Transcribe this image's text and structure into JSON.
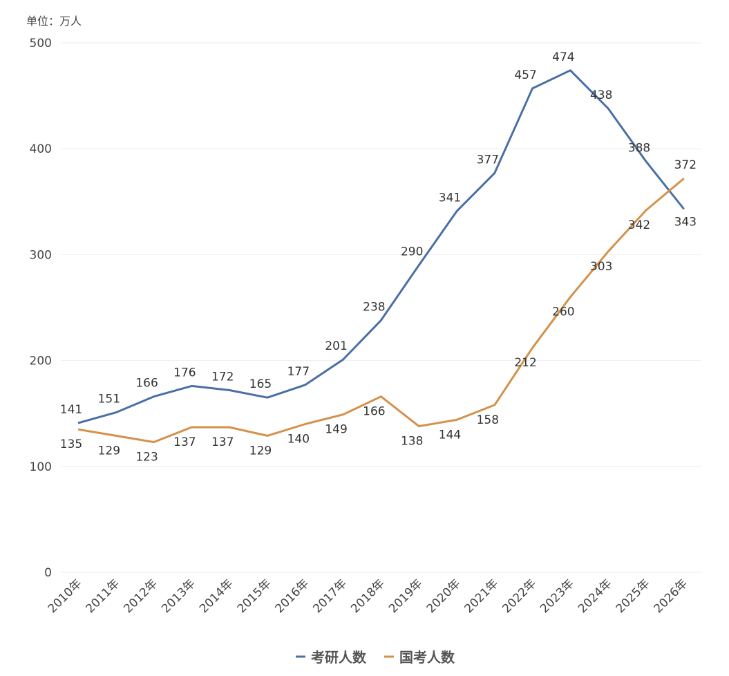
{
  "chart_data": {
    "type": "line",
    "unit_label": "单位：万人",
    "categories": [
      "2010年",
      "2011年",
      "2012年",
      "2013年",
      "2014年",
      "2015年",
      "2016年",
      "2017年",
      "2018年",
      "2019年",
      "2020年",
      "2021年",
      "2022年",
      "2023年",
      "2024年",
      "2025年",
      "2026年"
    ],
    "series": [
      {
        "name": "考研人数",
        "color": "#4a6fa5",
        "values": [
          141,
          151,
          166,
          176,
          172,
          165,
          177,
          201,
          238,
          290,
          341,
          377,
          457,
          474,
          438,
          388,
          343
        ]
      },
      {
        "name": "国考人数",
        "color": "#d4914a",
        "values": [
          135,
          129,
          123,
          137,
          137,
          129,
          140,
          149,
          166,
          138,
          144,
          158,
          212,
          260,
          303,
          342,
          372
        ]
      }
    ],
    "ylim": [
      0,
      500
    ],
    "yticks": [
      0,
      100,
      200,
      300,
      400,
      500
    ],
    "grid": true,
    "legend": "bottom-center",
    "xlabel": "",
    "ylabel": ""
  }
}
